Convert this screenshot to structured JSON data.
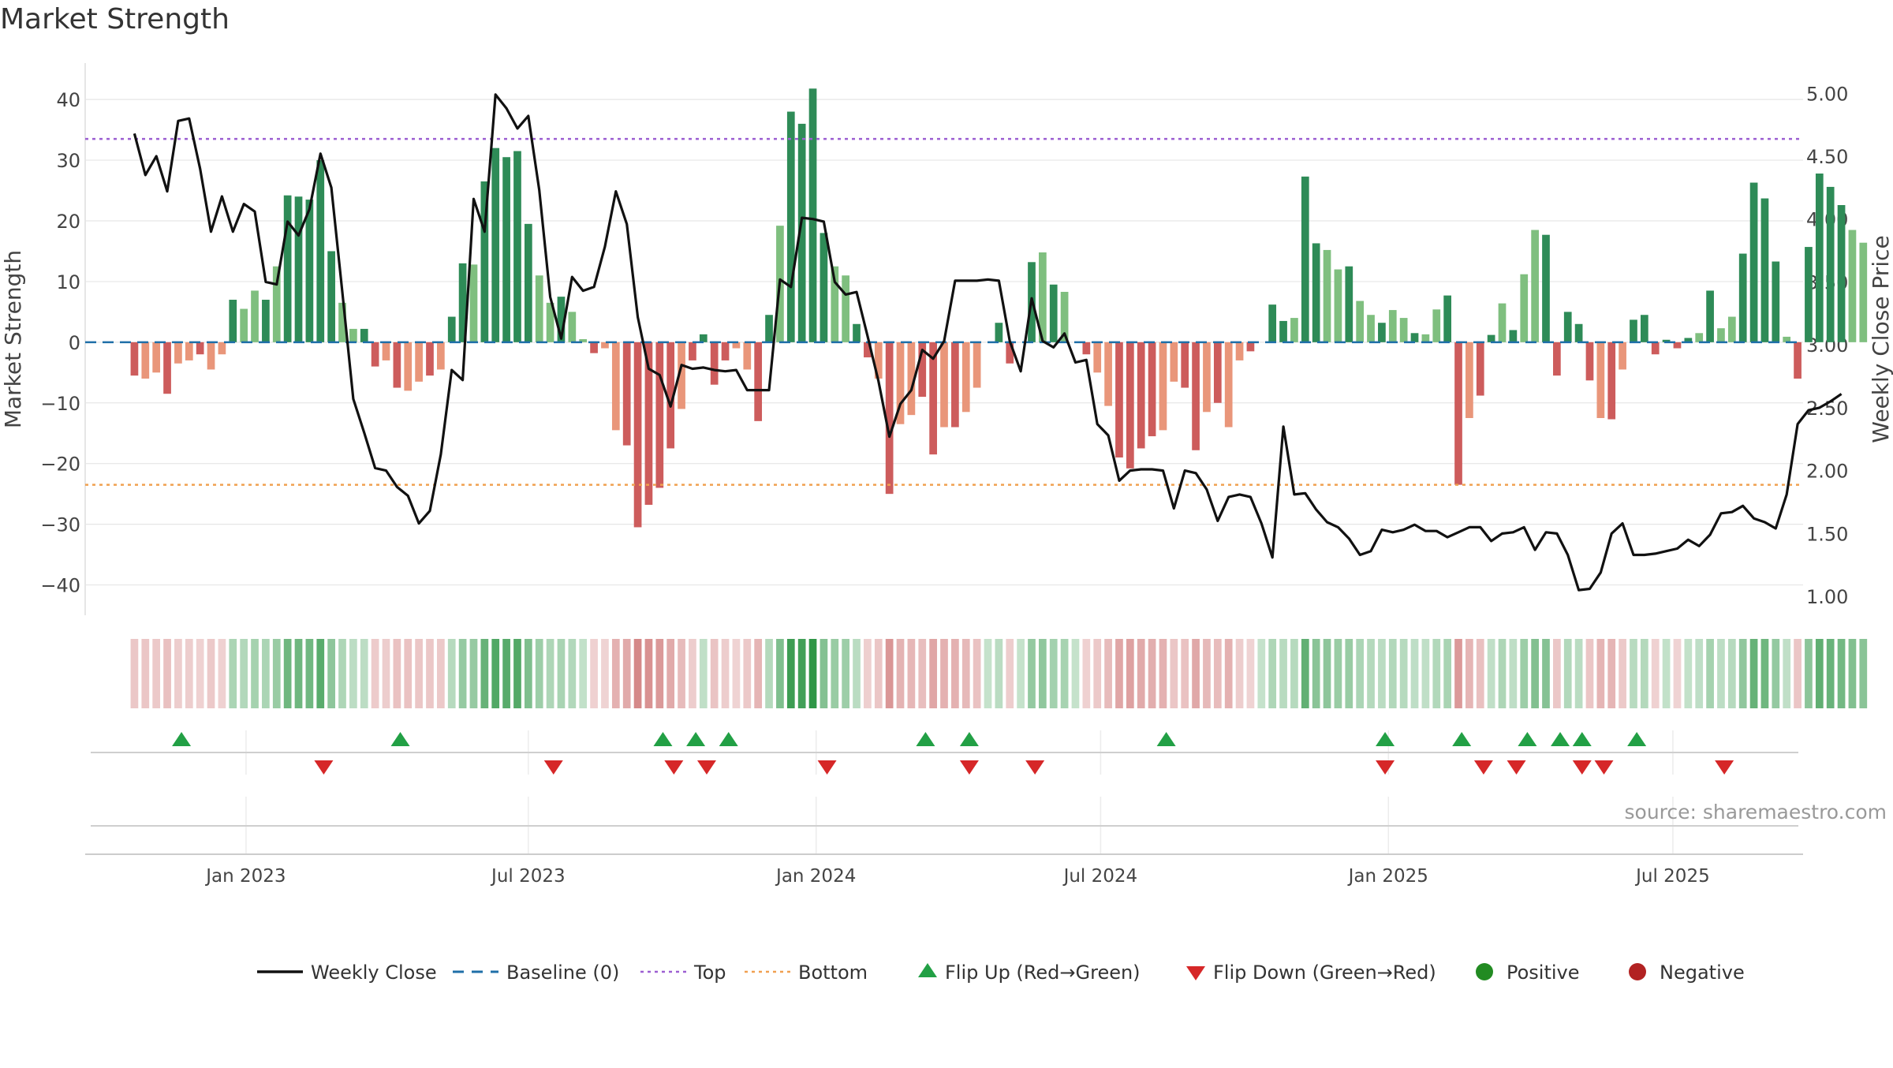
{
  "chart_data": {
    "type": "bar",
    "title": "Market Strength",
    "source": "source: sharemaestro.com",
    "ylabel": "Market Strength",
    "y2label": "Weekly Close Price",
    "ylim": [
      -45,
      46
    ],
    "y2lim": [
      0.85,
      5.24
    ],
    "yticks": [
      40,
      30,
      20,
      10,
      0,
      -10,
      -20,
      -30,
      -40
    ],
    "y2ticks": [
      5.0,
      4.5,
      4.0,
      3.5,
      3.0,
      2.5,
      2.0,
      1.5,
      1.0
    ],
    "ytick_labels": [
      "40",
      "30",
      "20",
      "10",
      "0",
      "−10",
      "−20",
      "−30",
      "−40"
    ],
    "y2tick_labels": [
      "5.00",
      "4.50",
      "4.00",
      "3.50",
      "3.00",
      "2.50",
      "2.00",
      "1.50",
      "1.00"
    ],
    "xlim_weeks": [
      -4.5,
      152.5
    ],
    "xticks": [
      {
        "label": "Jan 2023",
        "week": 10.2
      },
      {
        "label": "Jul 2023",
        "week": 36.0
      },
      {
        "label": "Jan 2024",
        "week": 62.3
      },
      {
        "label": "Jul 2024",
        "week": 88.3
      },
      {
        "label": "Jan 2025",
        "week": 114.6
      },
      {
        "label": "Jul 2025",
        "week": 140.6
      }
    ],
    "top_line": 33.5,
    "bottom_line": -23.5,
    "baseline": 0,
    "colors": {
      "pos_strong": "#2e8b57",
      "pos_light": "#7fbf7f",
      "neg_strong": "#cd5c5c",
      "neg_light": "#e9967a",
      "close_line": "#111111",
      "baseline": "#1f6fa8",
      "top": "#9c5fd1",
      "bottom": "#f0a050",
      "flip_up": "#22a045",
      "flip_down": "#d62728",
      "positive_dot": "#228b22",
      "negative_dot": "#b22222",
      "grid": "#e6e6e6"
    },
    "strength": [
      -5.5,
      -6,
      -5,
      -8.5,
      -3.5,
      -3,
      -2,
      -4.5,
      -2,
      7,
      5.5,
      8.5,
      7,
      12.5,
      24.2,
      24,
      23.5,
      30,
      15,
      6.5,
      2.2,
      2.2,
      -4,
      -3,
      -7.5,
      -8,
      -6.5,
      -5.5,
      -4.5,
      4.2,
      13,
      12.8,
      26.5,
      32,
      30.5,
      31.5,
      19.5,
      11,
      6.5,
      7.5,
      5,
      0.5,
      -1.8,
      -1,
      -14.5,
      -17,
      -30.5,
      -26.8,
      -24,
      -17.5,
      -11,
      -3,
      1.3,
      -7,
      -3,
      -1,
      -4.5,
      -13,
      4.5,
      19.2,
      38,
      36,
      41.8,
      18,
      12.5,
      11,
      3,
      -2.5,
      -6,
      -25,
      -13.5,
      -12,
      -9,
      -18.5,
      -14,
      -14,
      -11.5,
      -7.5,
      0,
      3.2,
      -3.5,
      0,
      13.2,
      14.8,
      9.5,
      8.3,
      0,
      -2,
      -5,
      -10.5,
      -19,
      -20.8,
      -17.5,
      -15.5,
      -14.5,
      -6.5,
      -7.5,
      -17.8,
      -11.5,
      -10,
      -14,
      -3,
      -1.5,
      0,
      6.2,
      3.5,
      4,
      27.3,
      16.3,
      15.2,
      12,
      12.5,
      6.8,
      4.5,
      3.2,
      5.3,
      4,
      1.5,
      1.3,
      5.4,
      7.7,
      -23.5,
      -12.5,
      -8.8,
      1.2,
      6.4,
      2,
      11.2,
      18.5,
      17.7,
      -5.5,
      5,
      3,
      -6.3,
      -12.5,
      -12.7,
      -4.5,
      3.7,
      4.5,
      -2,
      0.4,
      -1,
      0.7,
      1.5,
      8.5,
      2.3,
      4.2,
      14.6,
      26.3,
      23.7,
      13.3,
      0.9,
      -6,
      15.7,
      27.8,
      25.6,
      22.6,
      18.5,
      16.4
    ],
    "close": [
      4.68,
      4.35,
      4.5,
      4.22,
      4.78,
      4.8,
      4.4,
      3.9,
      4.18,
      3.9,
      4.12,
      4.06,
      3.5,
      3.48,
      3.98,
      3.87,
      4.08,
      4.52,
      4.25,
      3.42,
      2.57,
      2.3,
      2.02,
      2.0,
      1.87,
      1.8,
      1.58,
      1.68,
      2.13,
      2.8,
      2.72,
      4.16,
      3.9,
      4.99,
      4.88,
      4.72,
      4.82,
      4.23,
      3.38,
      3.05,
      3.54,
      3.43,
      3.46,
      3.78,
      4.22,
      3.96,
      3.22,
      2.81,
      2.76,
      2.51,
      2.84,
      2.81,
      2.82,
      2.8,
      2.79,
      2.8,
      2.64,
      2.64,
      2.64,
      3.52,
      3.46,
      4.01,
      4.0,
      3.98,
      3.5,
      3.4,
      3.42,
      3.07,
      2.71,
      2.27,
      2.53,
      2.64,
      2.96,
      2.89,
      3.03,
      3.51,
      3.51,
      3.51,
      3.52,
      3.51,
      3.03,
      2.79,
      3.37,
      3.03,
      2.98,
      3.09,
      2.86,
      2.88,
      2.37,
      2.28,
      1.92,
      2.0,
      2.01,
      2.01,
      2.0,
      1.7,
      2.0,
      1.98,
      1.85,
      1.6,
      1.79,
      1.81,
      1.79,
      1.58,
      1.31,
      2.35,
      1.81,
      1.82,
      1.69,
      1.59,
      1.55,
      1.46,
      1.33,
      1.36,
      1.53,
      1.51,
      1.53,
      1.57,
      1.52,
      1.52,
      1.47,
      1.51,
      1.55,
      1.55,
      1.44,
      1.5,
      1.51,
      1.55,
      1.37,
      1.51,
      1.5,
      1.33,
      1.05,
      1.06,
      1.19,
      1.5,
      1.58,
      1.33,
      1.33,
      1.34,
      1.36,
      1.38,
      1.45,
      1.4,
      1.49,
      1.66,
      1.67,
      1.72,
      1.62,
      1.59,
      1.54,
      1.81,
      2.37,
      2.48,
      2.5,
      2.55,
      2.61
    ],
    "flip_up_weeks": [
      4.3,
      24.3,
      48.3,
      51.3,
      54.3,
      72.3,
      76.3,
      94.3,
      114.3,
      121.3,
      127.3,
      130.3,
      132.3,
      137.3
    ],
    "flip_down_weeks": [
      17.3,
      38.3,
      49.3,
      52.3,
      63.3,
      76.3,
      82.3,
      114.3,
      123.3,
      126.3,
      132.3,
      134.3,
      145.3
    ],
    "legend": [
      {
        "label": "Weekly Close",
        "kind": "line"
      },
      {
        "label": "Baseline (0)",
        "kind": "dash"
      },
      {
        "label": "Top",
        "kind": "dot-top"
      },
      {
        "label": "Bottom",
        "kind": "dot-bottom"
      },
      {
        "label": "Flip Up (Red→Green)",
        "kind": "tri-up"
      },
      {
        "label": "Flip Down (Green→Red)",
        "kind": "tri-down"
      },
      {
        "label": "Positive",
        "kind": "circle-pos"
      },
      {
        "label": "Negative",
        "kind": "circle-neg"
      }
    ]
  }
}
